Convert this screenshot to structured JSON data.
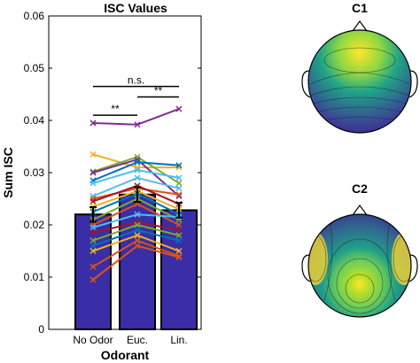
{
  "chart_data": {
    "type": "bar",
    "title": "ISC Values",
    "xlabel": "Odorant",
    "ylabel": "Sum ISC",
    "categories": [
      "No Odor",
      "Euc.",
      "Lin."
    ],
    "values": [
      0.022,
      0.0258,
      0.0228
    ],
    "error": [
      0.0014,
      0.0014,
      0.0014
    ],
    "ylim": [
      0,
      0.06
    ],
    "yticks": [
      "0",
      "0.01",
      "0.02",
      "0.03",
      "0.04",
      "0.05",
      "0.06"
    ],
    "bar_color": "#3a2ea6",
    "significance": [
      {
        "pair": [
          0,
          2
        ],
        "label": "n.s.",
        "y": 0.0465
      },
      {
        "pair": [
          0,
          1
        ],
        "label": "**",
        "y": 0.041
      },
      {
        "pair": [
          1,
          2
        ],
        "label": "**",
        "y": 0.0445
      }
    ],
    "subjects": [
      {
        "values": [
          0.0395,
          0.0392,
          0.0422
        ],
        "color": "#7e2f8e"
      },
      {
        "values": [
          0.0335,
          0.031,
          0.031
        ],
        "color": "#edb120"
      },
      {
        "values": [
          0.0302,
          0.033,
          0.028
        ],
        "color": "#77ac30"
      },
      {
        "values": [
          0.03,
          0.0325,
          0.0255
        ],
        "color": "#7e2f8e"
      },
      {
        "values": [
          0.0285,
          0.032,
          0.0314
        ],
        "color": "#0072bd"
      },
      {
        "values": [
          0.028,
          0.0305,
          0.029
        ],
        "color": "#4dbeee"
      },
      {
        "values": [
          0.0255,
          0.029,
          0.027
        ],
        "color": "#4dbeee"
      },
      {
        "values": [
          0.025,
          0.027,
          0.0258
        ],
        "color": "#d95319"
      },
      {
        "values": [
          0.0245,
          0.0275,
          0.024
        ],
        "color": "#a2142f"
      },
      {
        "values": [
          0.0235,
          0.0265,
          0.023
        ],
        "color": "#edb120"
      },
      {
        "values": [
          0.0225,
          0.026,
          0.022
        ],
        "color": "#0072bd"
      },
      {
        "values": [
          0.021,
          0.025,
          0.021
        ],
        "color": "#77ac30"
      },
      {
        "values": [
          0.02,
          0.024,
          0.02
        ],
        "color": "#d95319"
      },
      {
        "values": [
          0.0195,
          0.022,
          0.0215
        ],
        "color": "#4dbeee"
      },
      {
        "values": [
          0.0185,
          0.0205,
          0.019
        ],
        "color": "#a2142f"
      },
      {
        "values": [
          0.017,
          0.02,
          0.018
        ],
        "color": "#77ac30"
      },
      {
        "values": [
          0.016,
          0.019,
          0.017
        ],
        "color": "#0072bd"
      },
      {
        "values": [
          0.015,
          0.018,
          0.015
        ],
        "color": "#edb120"
      },
      {
        "values": [
          0.012,
          0.017,
          0.014
        ],
        "color": "#d95319"
      },
      {
        "values": [
          0.0095,
          0.016,
          0.0138
        ],
        "color": "#d95319"
      }
    ]
  },
  "topomaps": [
    {
      "label": "C1",
      "colormap": [
        "#fde725",
        "#8fd744",
        "#21a585",
        "#2a788e",
        "#3b4994",
        "#3b1f8f"
      ]
    },
    {
      "label": "C2",
      "colormap": [
        "#fde725",
        "#b5de2b",
        "#6ece58",
        "#1f9e89",
        "#31688e",
        "#3b1f8f"
      ]
    }
  ]
}
